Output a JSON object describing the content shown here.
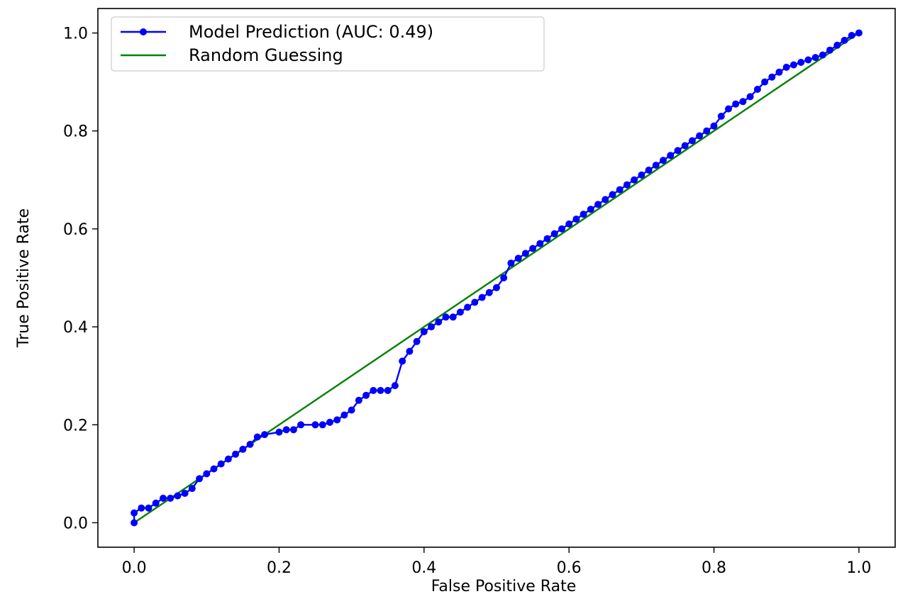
{
  "chart_data": {
    "type": "line",
    "title": "",
    "xlabel": "False Positive Rate",
    "ylabel": "True Positive Rate",
    "xlim": [
      -0.05,
      1.05
    ],
    "ylim": [
      -0.05,
      1.05
    ],
    "xticks": [
      0.0,
      0.2,
      0.4,
      0.6,
      0.8,
      1.0
    ],
    "yticks": [
      0.0,
      0.2,
      0.4,
      0.6,
      0.8,
      1.0
    ],
    "xtick_labels": [
      "0.0",
      "0.2",
      "0.4",
      "0.6",
      "0.8",
      "1.0"
    ],
    "ytick_labels": [
      "0.0",
      "0.2",
      "0.4",
      "0.6",
      "0.8",
      "1.0"
    ],
    "grid": false,
    "legend_position": "top-left",
    "series": [
      {
        "name": "Model Prediction (AUC: 0.49)",
        "color": "#0000ff",
        "marker": "circle",
        "x": [
          0.0,
          0.0,
          0.01,
          0.02,
          0.03,
          0.04,
          0.05,
          0.06,
          0.07,
          0.08,
          0.09,
          0.1,
          0.11,
          0.12,
          0.13,
          0.14,
          0.15,
          0.16,
          0.17,
          0.18,
          0.2,
          0.21,
          0.22,
          0.23,
          0.25,
          0.26,
          0.27,
          0.28,
          0.29,
          0.3,
          0.31,
          0.32,
          0.33,
          0.34,
          0.35,
          0.36,
          0.37,
          0.38,
          0.39,
          0.4,
          0.41,
          0.42,
          0.43,
          0.44,
          0.45,
          0.46,
          0.47,
          0.48,
          0.49,
          0.5,
          0.51,
          0.52,
          0.53,
          0.54,
          0.55,
          0.56,
          0.57,
          0.58,
          0.59,
          0.6,
          0.61,
          0.62,
          0.63,
          0.64,
          0.65,
          0.66,
          0.67,
          0.68,
          0.69,
          0.7,
          0.71,
          0.72,
          0.73,
          0.74,
          0.75,
          0.76,
          0.77,
          0.78,
          0.79,
          0.8,
          0.81,
          0.82,
          0.83,
          0.84,
          0.85,
          0.86,
          0.87,
          0.88,
          0.89,
          0.9,
          0.91,
          0.92,
          0.93,
          0.94,
          0.95,
          0.96,
          0.97,
          0.98,
          0.99,
          1.0
        ],
        "y": [
          0.0,
          0.02,
          0.03,
          0.03,
          0.04,
          0.05,
          0.05,
          0.055,
          0.06,
          0.07,
          0.09,
          0.1,
          0.11,
          0.12,
          0.13,
          0.14,
          0.15,
          0.16,
          0.175,
          0.18,
          0.185,
          0.19,
          0.19,
          0.2,
          0.2,
          0.2,
          0.205,
          0.21,
          0.22,
          0.23,
          0.25,
          0.26,
          0.27,
          0.27,
          0.27,
          0.28,
          0.33,
          0.35,
          0.37,
          0.39,
          0.4,
          0.41,
          0.42,
          0.42,
          0.43,
          0.44,
          0.45,
          0.46,
          0.47,
          0.48,
          0.5,
          0.53,
          0.54,
          0.55,
          0.56,
          0.57,
          0.58,
          0.59,
          0.6,
          0.61,
          0.62,
          0.63,
          0.64,
          0.65,
          0.66,
          0.67,
          0.68,
          0.69,
          0.7,
          0.71,
          0.72,
          0.73,
          0.74,
          0.75,
          0.76,
          0.77,
          0.78,
          0.79,
          0.8,
          0.81,
          0.83,
          0.845,
          0.855,
          0.86,
          0.87,
          0.885,
          0.9,
          0.91,
          0.92,
          0.93,
          0.935,
          0.94,
          0.945,
          0.95,
          0.955,
          0.965,
          0.975,
          0.985,
          0.995,
          1.0
        ]
      },
      {
        "name": "Random Guessing",
        "color": "#008000",
        "marker": "none",
        "x": [
          0.0,
          1.0
        ],
        "y": [
          0.0,
          1.0
        ]
      }
    ]
  }
}
